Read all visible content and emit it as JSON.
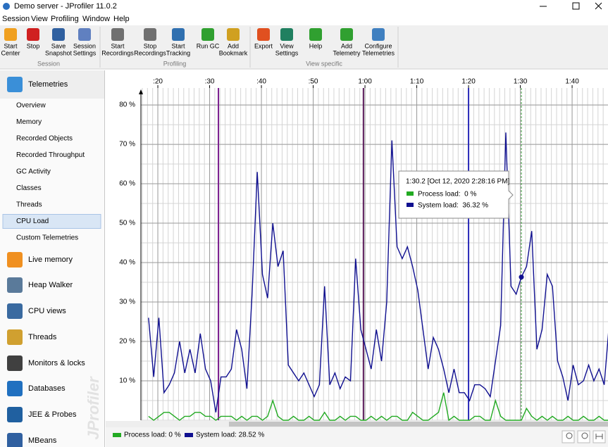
{
  "window": {
    "title": "Demo server - JProfiler 11.0.2"
  },
  "menu": [
    "Session",
    "View",
    "Profiling",
    "Window",
    "Help"
  ],
  "toolbar": {
    "groups": [
      {
        "label": "Session",
        "buttons": [
          {
            "lines": [
              "Start",
              "Center"
            ]
          },
          {
            "lines": [
              "Stop"
            ]
          },
          {
            "lines": [
              "Save",
              "Snapshot"
            ]
          },
          {
            "lines": [
              "Session",
              "Settings"
            ]
          }
        ]
      },
      {
        "label": "Profiling",
        "buttons": [
          {
            "lines": [
              "Start",
              "Recordings"
            ]
          },
          {
            "lines": [
              "Stop",
              "Recordings"
            ]
          },
          {
            "lines": [
              "Start",
              "Tracking"
            ]
          },
          {
            "lines": [
              "Run GC"
            ]
          },
          {
            "lines": [
              "Add",
              "Bookmark"
            ]
          }
        ]
      },
      {
        "label": "View specific",
        "buttons": [
          {
            "lines": [
              "Export"
            ]
          },
          {
            "lines": [
              "View",
              "Settings"
            ]
          },
          {
            "lines": [
              "Help"
            ]
          },
          {
            "lines": [
              "Add",
              "Telemetry"
            ]
          },
          {
            "lines": [
              "Configure",
              "Telemetries"
            ]
          }
        ]
      }
    ]
  },
  "sidebar": {
    "watermark": "JProfiler",
    "selected": "CPU Load",
    "sections": [
      {
        "label": "Telemetries",
        "items": [
          "Overview",
          "Memory",
          "Recorded Objects",
          "Recorded Throughput",
          "GC Activity",
          "Classes",
          "Threads",
          "CPU Load",
          "Custom Telemetries"
        ]
      },
      {
        "label": "Live memory"
      },
      {
        "label": "Heap Walker"
      },
      {
        "label": "CPU views"
      },
      {
        "label": "Threads"
      },
      {
        "label": "Monitors & locks"
      },
      {
        "label": "Databases"
      },
      {
        "label": "JEE & Probes"
      },
      {
        "label": "MBeans"
      }
    ]
  },
  "chart": {
    "type": "line",
    "x": [
      18.2,
      19.2,
      20.2,
      21.2,
      22.2,
      23.2,
      24.2,
      25.2,
      26.2,
      27.2,
      28.2,
      29.2,
      30.2,
      31.2,
      32.2,
      33.2,
      34.2,
      35.2,
      36.2,
      37.2,
      38.2,
      39.2,
      40.2,
      41.2,
      42.2,
      43.2,
      44.2,
      45.2,
      46.2,
      47.2,
      48.2,
      49.2,
      50.2,
      51.2,
      52.2,
      53.2,
      54.2,
      55.2,
      56.2,
      57.2,
      58.2,
      59.2,
      60.2,
      61.2,
      62.2,
      63.2,
      64.2,
      65.2,
      66.2,
      67.2,
      68.2,
      69.2,
      70.2,
      71.2,
      72.2,
      73.2,
      74.2,
      75.2,
      76.2,
      77.2,
      78.2,
      79.2,
      80.2,
      81.2,
      82.2,
      83.2,
      84.2,
      85.2,
      86.2,
      87.2,
      88.2,
      89.2,
      90.2,
      91.2,
      92.2,
      93.2,
      94.2,
      95.2,
      96.2,
      97.2,
      98.2,
      99.2,
      100.2,
      101.2,
      102.2,
      103.2,
      104.2,
      105.2,
      106.2,
      107.2
    ],
    "xlim": [
      16.73,
      106.93
    ],
    "xticks": [
      {
        "value": 20,
        "label": ":20"
      },
      {
        "value": 30,
        "label": ":30"
      },
      {
        "value": 40,
        "label": ":40"
      },
      {
        "value": 50,
        "label": ":50"
      },
      {
        "value": 60,
        "label": "1:00"
      },
      {
        "value": 70,
        "label": "1:10"
      },
      {
        "value": 80,
        "label": "1:20"
      },
      {
        "value": 90,
        "label": "1:30"
      },
      {
        "value": 100,
        "label": "1:40"
      }
    ],
    "ylim": [
      0,
      84.3
    ],
    "yticks": [
      {
        "value": 10,
        "label": "10 %"
      },
      {
        "value": 20,
        "label": "20 %"
      },
      {
        "value": 30,
        "label": "30 %"
      },
      {
        "value": 40,
        "label": "40 %"
      },
      {
        "value": 50,
        "label": "50 %"
      },
      {
        "value": 60,
        "label": "60 %"
      },
      {
        "value": 70,
        "label": "70 %"
      },
      {
        "value": 80,
        "label": "80 %"
      }
    ],
    "grid": true,
    "series": [
      {
        "name": "Process load",
        "color": "#22aa22",
        "legend_label": "Process load: 0 %",
        "values": [
          1,
          0,
          1,
          2,
          2,
          1,
          0,
          1,
          1,
          2,
          2,
          1,
          1,
          0,
          1,
          1,
          1,
          0,
          1,
          0,
          1,
          1,
          0,
          1,
          5,
          1,
          0,
          0,
          1,
          0,
          0,
          1,
          0,
          0,
          2,
          0,
          0,
          1,
          0,
          1,
          1,
          0,
          0,
          1,
          0,
          1,
          0,
          1,
          1,
          0,
          0,
          2,
          1,
          0,
          0,
          1,
          2,
          7,
          0,
          1,
          0,
          0,
          0,
          1,
          1,
          0,
          0,
          5,
          1,
          0,
          0,
          0,
          0,
          3,
          1,
          0,
          1,
          0,
          1,
          0,
          0,
          1,
          0,
          0,
          1,
          0,
          0,
          1,
          0,
          0
        ]
      },
      {
        "name": "System load",
        "color": "#101090",
        "legend_label": "System load: 28.52 %",
        "values": [
          26,
          11,
          26,
          7,
          9,
          12,
          20,
          12,
          18,
          12,
          22,
          13,
          10,
          2,
          11,
          11,
          13,
          23,
          18,
          8,
          32,
          63,
          37,
          31,
          50,
          39,
          43,
          14,
          12,
          10,
          12,
          9,
          6,
          9,
          34,
          9,
          12,
          8,
          11,
          10,
          41,
          23,
          18,
          13,
          23,
          15,
          30,
          71,
          44,
          41,
          44,
          39,
          33,
          23,
          13,
          21,
          18,
          13,
          7,
          13,
          7,
          7,
          5,
          9,
          9,
          8,
          6,
          15,
          24,
          73,
          34,
          32,
          36.32,
          39,
          48,
          18,
          23,
          37,
          34,
          15,
          11,
          5,
          14,
          9,
          10,
          14,
          10,
          13,
          9,
          25
        ]
      }
    ],
    "bookmarks": [
      {
        "x": 31.7,
        "color": "#7b1f8f"
      },
      {
        "x": 59.7,
        "color": "#5a1a5a"
      },
      {
        "x": 80,
        "color": "#2a2ab8"
      }
    ],
    "cursor_x": 90.2,
    "tooltip": {
      "title": "1:30.2 [Oct 12, 2020 2:28:16 PM]",
      "lines": [
        "Process load:  0 %",
        "System load:  36.32 %"
      ]
    }
  }
}
